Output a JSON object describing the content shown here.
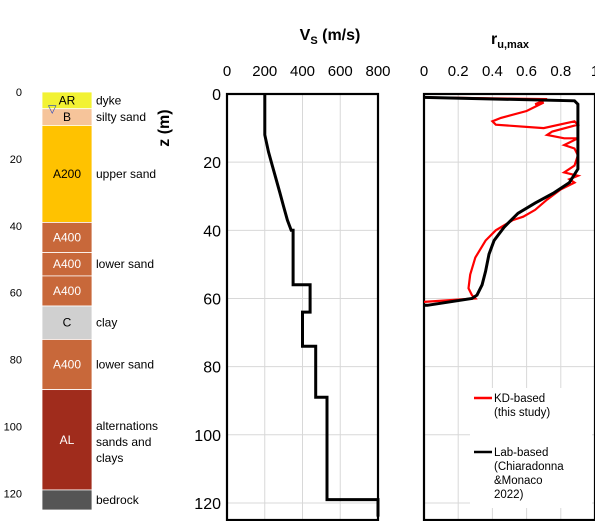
{
  "log": {
    "depth_ticks": [
      "0",
      "20",
      "40",
      "60",
      "80",
      "100",
      "120"
    ],
    "layers": [
      {
        "code": "AR",
        "name": "dyke",
        "top": 0,
        "bottom": 5,
        "color": "#f2f233"
      },
      {
        "code": "B",
        "name": "silty sand",
        "top": 5,
        "bottom": 10,
        "color": "#f6c49a"
      },
      {
        "code": "A200",
        "name": "upper sand",
        "top": 10,
        "bottom": 39,
        "color": "#ffc200"
      },
      {
        "code": "A400",
        "name": "",
        "top": 39,
        "bottom": 48,
        "color": "#c8683a"
      },
      {
        "code": "A400",
        "name": "lower sand",
        "top": 48,
        "bottom": 55,
        "color": "#c8683a"
      },
      {
        "code": "A400",
        "name": "",
        "top": 55,
        "bottom": 64,
        "color": "#c8683a"
      },
      {
        "code": "C",
        "name": "clay",
        "top": 64,
        "bottom": 74,
        "color": "#d0d0d0"
      },
      {
        "code": "A400",
        "name": "lower sand",
        "top": 74,
        "bottom": 89,
        "color": "#c8683a"
      },
      {
        "code": "AL",
        "name": "alternations sands and clays",
        "top": 89,
        "bottom": 119,
        "color": "#a02c1c"
      },
      {
        "code": "",
        "name": "bedrock",
        "top": 119,
        "bottom": 125,
        "color": "#555555"
      }
    ],
    "water_symbol": "▽"
  },
  "chart_data": [
    {
      "type": "line",
      "title": "V",
      "title_sub": "S",
      "title_unit": " (m/s)",
      "ylabel": "z (m)",
      "xlim": [
        0,
        800
      ],
      "ylim": [
        0,
        125
      ],
      "y_inverted": true,
      "x_ticks": [
        0,
        200,
        400,
        600,
        800
      ],
      "y_ticks": [
        0,
        20,
        40,
        60,
        80,
        100,
        120
      ],
      "grid": true,
      "series": [
        {
          "name": "",
          "color": "#000000",
          "points": [
            [
              200,
              0
            ],
            [
              200,
              12
            ],
            [
              220,
              17
            ],
            [
              240,
              21
            ],
            [
              260,
              25
            ],
            [
              280,
              29
            ],
            [
              300,
              33
            ],
            [
              320,
              37
            ],
            [
              340,
              40
            ],
            [
              350,
              40
            ],
            [
              350,
              56
            ],
            [
              440,
              56
            ],
            [
              440,
              64
            ],
            [
              400,
              64
            ],
            [
              400,
              74
            ],
            [
              470,
              74
            ],
            [
              470,
              89
            ],
            [
              530,
              89
            ],
            [
              530,
              119
            ],
            [
              800,
              119
            ],
            [
              800,
              124
            ]
          ]
        }
      ]
    },
    {
      "type": "line",
      "title": "r",
      "title_sub": "u,max",
      "xlim": [
        0,
        1
      ],
      "ylim": [
        0,
        125
      ],
      "y_inverted": true,
      "x_ticks": [
        "0",
        "0.2",
        "0.4",
        "0.6",
        "0.8",
        "1"
      ],
      "grid": true,
      "legend_position": "bottom-right",
      "series": [
        {
          "name": "KD-based (this study)",
          "legend_lines": [
            "KD-based",
            "(this study)"
          ],
          "color": "#ff0000",
          "points": [
            [
              0,
              1
            ],
            [
              0.72,
              1.5
            ],
            [
              0.65,
              3
            ],
            [
              0.7,
              2.5
            ],
            [
              0.6,
              5
            ],
            [
              0.45,
              7
            ],
            [
              0.4,
              8
            ],
            [
              0.42,
              9
            ],
            [
              0.7,
              10
            ],
            [
              0.88,
              8
            ],
            [
              0.9,
              9
            ],
            [
              0.75,
              11
            ],
            [
              0.72,
              12
            ],
            [
              0.82,
              13
            ],
            [
              0.9,
              13
            ],
            [
              0.82,
              15
            ],
            [
              0.88,
              16
            ],
            [
              0.9,
              18
            ],
            [
              0.88,
              21
            ],
            [
              0.82,
              23
            ],
            [
              0.9,
              24
            ],
            [
              0.85,
              25
            ],
            [
              0.88,
              26
            ],
            [
              0.8,
              28
            ],
            [
              0.72,
              31
            ],
            [
              0.65,
              34
            ],
            [
              0.58,
              36
            ],
            [
              0.52,
              37
            ],
            [
              0.42,
              40
            ],
            [
              0.36,
              43
            ],
            [
              0.3,
              48
            ],
            [
              0.27,
              53
            ],
            [
              0.26,
              57
            ],
            [
              0.28,
              59
            ],
            [
              0.3,
              60
            ],
            [
              0.0,
              61
            ]
          ]
        },
        {
          "name": "Lab-based (Chiaradonna &Monaco 2022)",
          "legend_lines": [
            "Lab-based",
            "(Chiaradonna",
            "&Monaco",
            "2022)"
          ],
          "color": "#000000",
          "points": [
            [
              0,
              1
            ],
            [
              0.88,
              2
            ],
            [
              0.9,
              3
            ],
            [
              0.9,
              22
            ],
            [
              0.85,
              26
            ],
            [
              0.76,
              29
            ],
            [
              0.65,
              32
            ],
            [
              0.55,
              35
            ],
            [
              0.47,
              39
            ],
            [
              0.41,
              43
            ],
            [
              0.38,
              47
            ],
            [
              0.36,
              52
            ],
            [
              0.34,
              56
            ],
            [
              0.31,
              59
            ],
            [
              0.28,
              60
            ],
            [
              0.02,
              62
            ],
            [
              0,
              62
            ]
          ]
        }
      ]
    }
  ]
}
